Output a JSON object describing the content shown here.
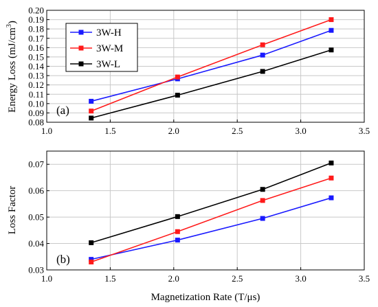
{
  "colors": {
    "3W-H": "#1a1aff",
    "3W-M": "#ff1a1a",
    "3W-L": "#000000"
  },
  "chart_data": [
    {
      "type": "line",
      "panel_label": "(a)",
      "ylabel": "Energy Loss (mJ/cm³)",
      "ylabel_main": "Energy Loss (mJ/cm",
      "ylabel_sup": "3",
      "ylabel_close": ")",
      "xlabel": "",
      "xlim": [
        1.0,
        3.5
      ],
      "ylim": [
        0.08,
        0.2
      ],
      "xticks": [
        1.0,
        1.5,
        2.0,
        2.5,
        3.0,
        3.5
      ],
      "xtick_labels": [
        "1.0",
        "1.5",
        "2.0",
        "2.5",
        "3.0",
        "3.5"
      ],
      "yticks": [
        0.08,
        0.09,
        0.1,
        0.11,
        0.12,
        0.13,
        0.14,
        0.15,
        0.16,
        0.17,
        0.18,
        0.19,
        0.2
      ],
      "ytick_labels": [
        "0.08",
        "0.09",
        "0.10",
        "0.11",
        "0.12",
        "0.13",
        "0.14",
        "0.15",
        "0.16",
        "0.17",
        "0.18",
        "0.19",
        "0.20"
      ],
      "grid": true,
      "legend_position": "top-left",
      "x": [
        1.35,
        2.03,
        2.7,
        3.24
      ],
      "series": [
        {
          "name": "3W-H",
          "values": [
            0.1025,
            0.1265,
            0.152,
            0.1785
          ]
        },
        {
          "name": "3W-M",
          "values": [
            0.092,
            0.1285,
            0.163,
            0.19
          ]
        },
        {
          "name": "3W-L",
          "values": [
            0.0845,
            0.109,
            0.1345,
            0.1575
          ]
        }
      ]
    },
    {
      "type": "line",
      "panel_label": "(b)",
      "ylabel": "Loss Factor",
      "xlabel": "Magnetization Rate (T/μs)",
      "xlim": [
        1.0,
        3.5
      ],
      "ylim": [
        0.03,
        0.075
      ],
      "xticks": [
        1.0,
        1.5,
        2.0,
        2.5,
        3.0,
        3.5
      ],
      "xtick_labels": [
        "1.0",
        "1.5",
        "2.0",
        "2.5",
        "3.0",
        "3.5"
      ],
      "yticks": [
        0.03,
        0.04,
        0.05,
        0.06,
        0.07
      ],
      "ytick_labels": [
        "0.03",
        "0.04",
        "0.05",
        "0.06",
        "0.07"
      ],
      "grid": true,
      "x": [
        1.35,
        2.03,
        2.7,
        3.24
      ],
      "series": [
        {
          "name": "3W-H",
          "values": [
            0.034,
            0.0413,
            0.0495,
            0.0573
          ]
        },
        {
          "name": "3W-M",
          "values": [
            0.033,
            0.0445,
            0.0563,
            0.0648
          ]
        },
        {
          "name": "3W-L",
          "values": [
            0.0403,
            0.0502,
            0.0605,
            0.0705
          ]
        }
      ]
    }
  ]
}
